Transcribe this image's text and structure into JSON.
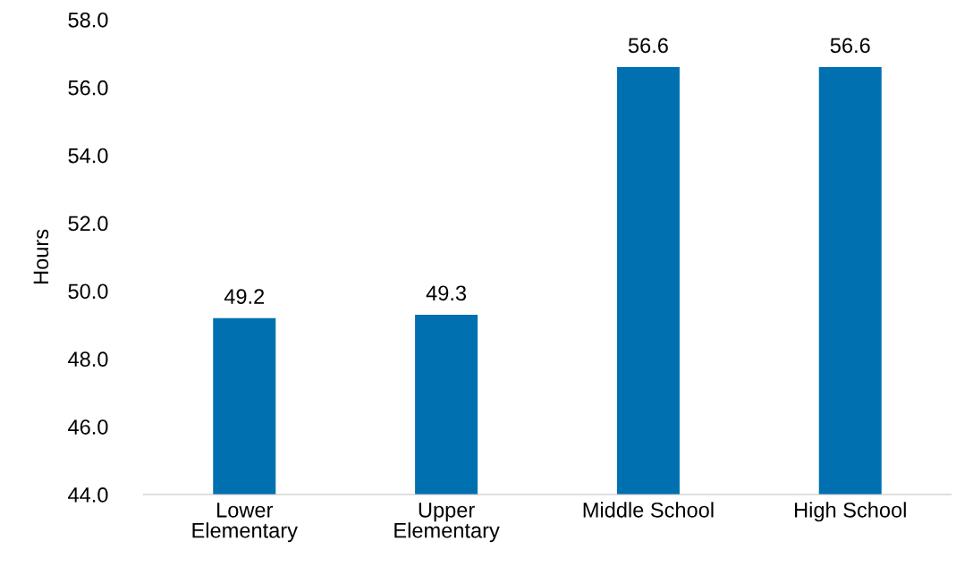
{
  "chart_data": {
    "type": "bar",
    "ylabel": "Hours",
    "categories": [
      "Lower\nElementary",
      "Upper\nElementary",
      "Middle School",
      "High School"
    ],
    "values": [
      49.2,
      49.3,
      56.6,
      56.6
    ],
    "color": "#0070b0",
    "ylim": [
      44,
      58
    ],
    "yticks": [
      {
        "value": 44,
        "label": "44.0"
      },
      {
        "value": 46,
        "label": "46.0"
      },
      {
        "value": 48,
        "label": "48.0"
      },
      {
        "value": 50,
        "label": "50.0"
      },
      {
        "value": 52,
        "label": "52.0"
      },
      {
        "value": 54,
        "label": "54.0"
      },
      {
        "value": 56,
        "label": "56.0"
      },
      {
        "value": 58,
        "label": "58.0"
      }
    ],
    "data_labels": true,
    "grid": false,
    "legend": false
  }
}
